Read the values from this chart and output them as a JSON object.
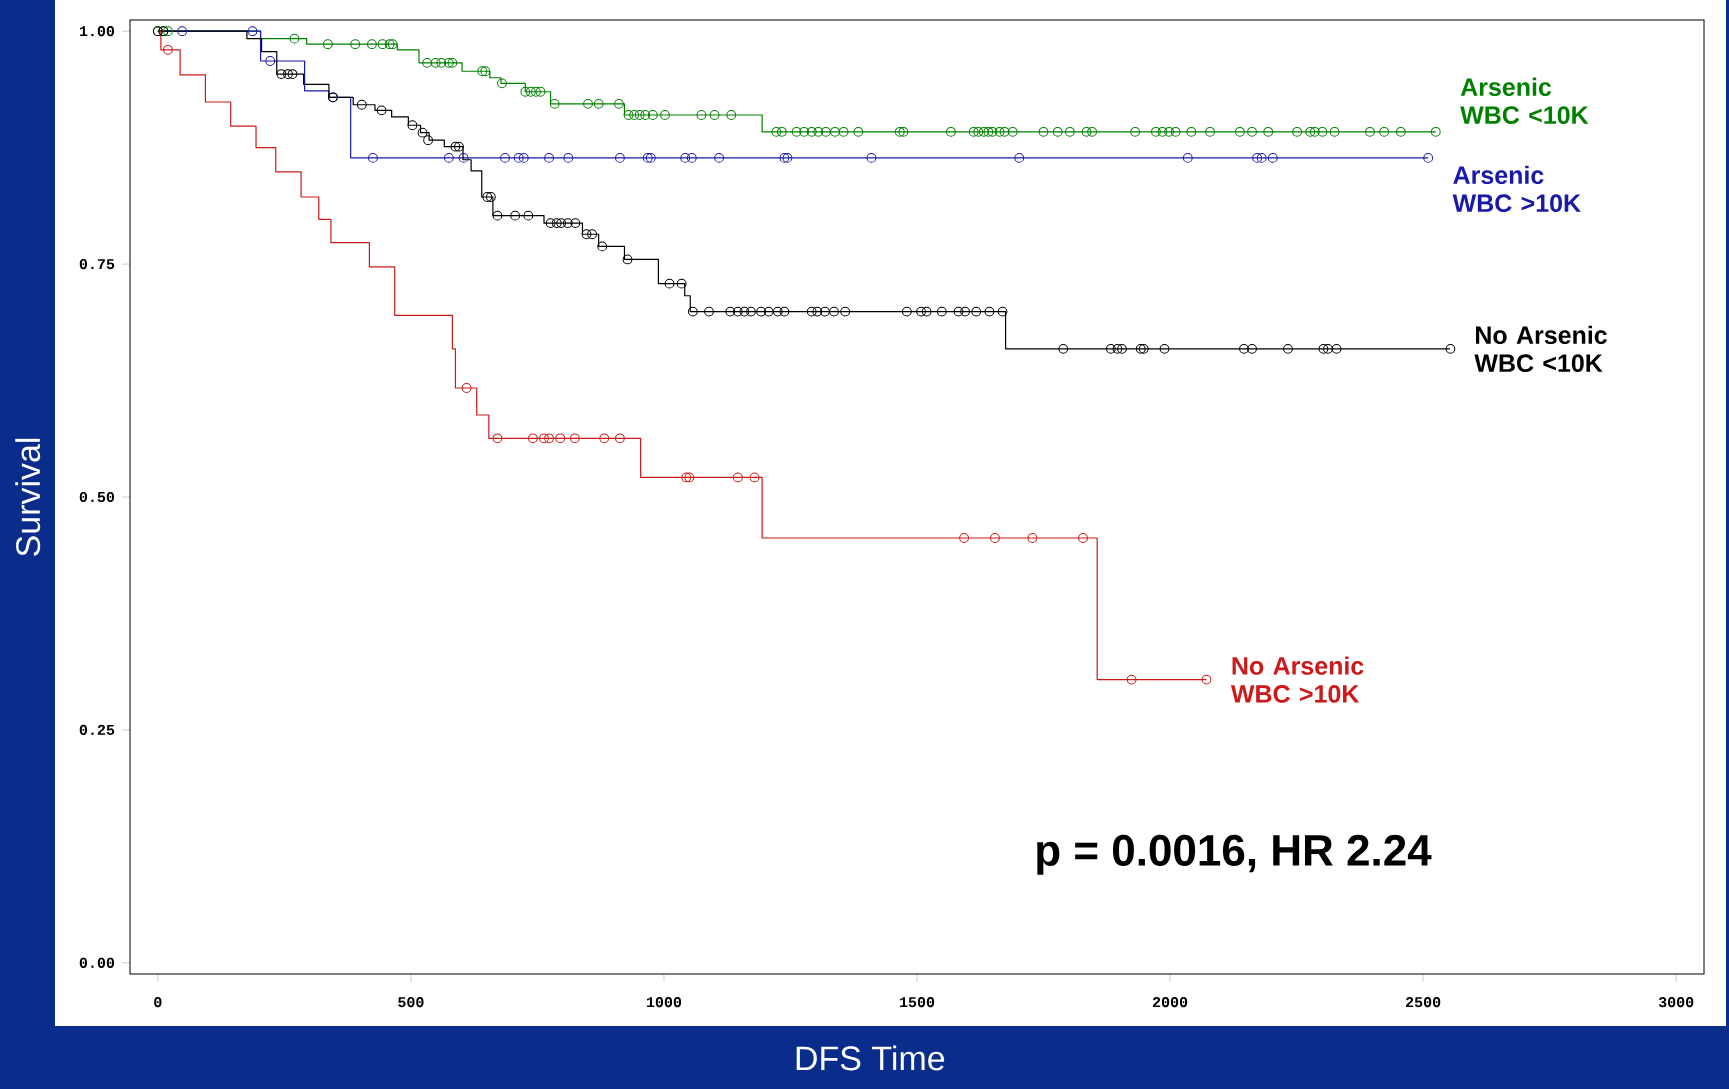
{
  "chart_data": {
    "type": "step",
    "xlabel": "DFS Time",
    "ylabel": "Survival",
    "xlim": [
      -55,
      3055
    ],
    "ylim": [
      -0.012,
      1.012
    ],
    "xticks": [
      0,
      500,
      1000,
      1500,
      2000,
      2500,
      3000
    ],
    "yticks": [
      {
        "value": 0,
        "label": "0.00"
      },
      {
        "value": 0.25,
        "label": "0.25"
      },
      {
        "value": 0.5,
        "label": "0.50"
      },
      {
        "value": 0.75,
        "label": "0.75"
      },
      {
        "value": 1,
        "label": "1.00"
      }
    ],
    "legend": false,
    "annotations": [
      "p = 0.0016, HR 2.24"
    ],
    "series": [
      {
        "name": "Arsenic WBC <10K",
        "color": "#008000",
        "x": [
          0,
          203,
          294,
          473,
          516,
          601,
          656,
          678,
          726,
          776,
          922,
          1194,
          2525
        ],
        "values": [
          1,
          0.992,
          0.986,
          0.98,
          0.966,
          0.957,
          0.95,
          0.944,
          0.935,
          0.922,
          0.91,
          0.892,
          0.892
        ]
      },
      {
        "name": "Arsenic WBC >10K",
        "color": "#1a1aa8",
        "x": [
          0,
          203,
          290,
          338,
          381,
          2510
        ],
        "values": [
          1,
          0.968,
          0.936,
          0.929,
          0.864,
          0.864
        ]
      },
      {
        "name": "No Arsenic WBC <10K",
        "color": "#000000",
        "x": [
          0,
          176,
          205,
          235,
          288,
          338,
          386,
          429,
          462,
          495,
          519,
          536,
          566,
          603,
          619,
          640,
          662,
          763,
          839,
          871,
          922,
          989,
          1041,
          1052,
          1675,
          2553
        ],
        "values": [
          1,
          0.992,
          0.978,
          0.954,
          0.943,
          0.929,
          0.921,
          0.915,
          0.908,
          0.899,
          0.891,
          0.883,
          0.876,
          0.862,
          0.85,
          0.822,
          0.802,
          0.794,
          0.782,
          0.769,
          0.755,
          0.729,
          0.716,
          0.699,
          0.659,
          0.659
        ]
      },
      {
        "name": "No Arsenic WBC >10K",
        "color": "#cc1a1a",
        "x": [
          0,
          6,
          44,
          94,
          144,
          194,
          233,
          283,
          318,
          342,
          418,
          468,
          582,
          588,
          630,
          654,
          954,
          1194,
          1856,
          2072
        ],
        "values": [
          1,
          0.98,
          0.953,
          0.924,
          0.898,
          0.875,
          0.849,
          0.822,
          0.798,
          0.773,
          0.747,
          0.695,
          0.659,
          0.617,
          0.588,
          0.563,
          0.521,
          0.456,
          0.304,
          0.304
        ]
      },
      {
        "type": "scatter",
        "marker": "circle",
        "color": "#008000",
        "x": [
          0,
          11,
          20,
          270,
          336,
          390,
          423,
          444,
          458,
          464,
          532,
          549,
          560,
          575,
          582,
          641,
          647,
          680,
          726,
          737,
          747,
          756,
          784,
          850,
          871,
          911,
          930,
          941,
          952,
          963,
          978,
          1002,
          1074,
          1100,
          1133,
          1222,
          1233,
          1262,
          1277,
          1292,
          1305,
          1320,
          1338,
          1355,
          1384,
          1466,
          1473,
          1567,
          1612,
          1621,
          1632,
          1641,
          1649,
          1663,
          1673,
          1689,
          1750,
          1778,
          1802,
          1835,
          1846,
          1931,
          1972,
          1985,
          1998,
          2011,
          2042,
          2079,
          2138,
          2162,
          2194,
          2251,
          2277,
          2286,
          2301,
          2325,
          2395,
          2423,
          2456,
          2525
        ],
        "values": [
          1,
          1,
          1,
          0.992,
          0.986,
          0.986,
          0.986,
          0.986,
          0.986,
          0.986,
          0.966,
          0.966,
          0.966,
          0.966,
          0.966,
          0.957,
          0.957,
          0.944,
          0.935,
          0.935,
          0.935,
          0.935,
          0.922,
          0.922,
          0.922,
          0.922,
          0.91,
          0.91,
          0.91,
          0.91,
          0.91,
          0.91,
          0.91,
          0.91,
          0.91,
          0.892,
          0.892,
          0.892,
          0.892,
          0.892,
          0.892,
          0.892,
          0.892,
          0.892,
          0.892,
          0.892,
          0.892,
          0.892,
          0.892,
          0.892,
          0.892,
          0.892,
          0.892,
          0.892,
          0.892,
          0.892,
          0.892,
          0.892,
          0.892,
          0.892,
          0.892,
          0.892,
          0.892,
          0.892,
          0.892,
          0.892,
          0.892,
          0.892,
          0.892,
          0.892,
          0.892,
          0.892,
          0.892,
          0.892,
          0.892,
          0.892,
          0.892,
          0.892,
          0.892,
          0.892
        ]
      },
      {
        "type": "scatter",
        "marker": "circle",
        "color": "#1a1aa8",
        "x": [
          48,
          187,
          222,
          346,
          425,
          575,
          604,
          686,
          713,
          723,
          773,
          811,
          913,
          968,
          974,
          1042,
          1055,
          1109,
          1238,
          1244,
          1410,
          1702,
          2035,
          2172,
          2181,
          2203,
          2510
        ],
        "values": [
          1,
          1,
          0.968,
          0.929,
          0.864,
          0.864,
          0.864,
          0.864,
          0.864,
          0.864,
          0.864,
          0.864,
          0.864,
          0.864,
          0.864,
          0.864,
          0.864,
          0.864,
          0.864,
          0.864,
          0.864,
          0.864,
          0.864,
          0.864,
          0.864,
          0.864,
          0.864
        ]
      },
      {
        "type": "scatter",
        "marker": "circle",
        "color": "#000000",
        "x": [
          0,
          11,
          244,
          257,
          266,
          346,
          403,
          442,
          503,
          523,
          534,
          588,
          595,
          651,
          658,
          671,
          706,
          732,
          776,
          788,
          797,
          810,
          825,
          847,
          858,
          878,
          928,
          1011,
          1035,
          1057,
          1089,
          1131,
          1146,
          1159,
          1172,
          1192,
          1207,
          1225,
          1238,
          1292,
          1303,
          1318,
          1336,
          1358,
          1480,
          1508,
          1519,
          1549,
          1582,
          1595,
          1617,
          1643,
          1669,
          1789,
          1883,
          1896,
          1905,
          1942,
          1948,
          1989,
          2146,
          2162,
          2233,
          2303,
          2312,
          2329,
          2554
        ],
        "values": [
          1,
          1,
          0.954,
          0.954,
          0.954,
          0.929,
          0.921,
          0.915,
          0.899,
          0.891,
          0.883,
          0.876,
          0.876,
          0.822,
          0.822,
          0.802,
          0.802,
          0.802,
          0.794,
          0.794,
          0.794,
          0.794,
          0.794,
          0.782,
          0.782,
          0.769,
          0.755,
          0.729,
          0.729,
          0.699,
          0.699,
          0.699,
          0.699,
          0.699,
          0.699,
          0.699,
          0.699,
          0.699,
          0.699,
          0.699,
          0.699,
          0.699,
          0.699,
          0.699,
          0.699,
          0.699,
          0.699,
          0.699,
          0.699,
          0.699,
          0.699,
          0.699,
          0.699,
          0.659,
          0.659,
          0.659,
          0.659,
          0.659,
          0.659,
          0.659,
          0.659,
          0.659,
          0.659,
          0.659,
          0.659,
          0.659,
          0.659
        ]
      },
      {
        "type": "scatter",
        "marker": "circle",
        "color": "#cc1a1a",
        "x": [
          20,
          610,
          671,
          741,
          763,
          773,
          795,
          824,
          882,
          913,
          1044,
          1050,
          1146,
          1179,
          1593,
          1654,
          1728,
          1828,
          1924,
          2072
        ],
        "values": [
          0.98,
          0.617,
          0.563,
          0.563,
          0.563,
          0.563,
          0.563,
          0.563,
          0.563,
          0.563,
          0.521,
          0.521,
          0.521,
          0.521,
          0.456,
          0.456,
          0.456,
          0.456,
          0.304,
          0.304
        ]
      }
    ]
  }
}
